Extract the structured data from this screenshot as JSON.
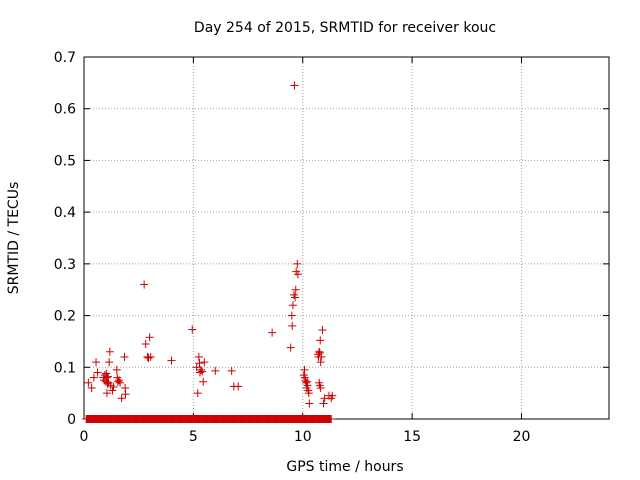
{
  "chart_data": {
    "type": "scatter",
    "title": "Day 254 of 2015, SRMTID for receiver kouc",
    "xlabel": "GPS time / hours",
    "ylabel": "SRMTID / TECUs",
    "xlim": [
      0,
      24
    ],
    "ylim": [
      0,
      0.7
    ],
    "xticks": [
      0,
      5,
      10,
      15,
      20
    ],
    "yticks": [
      0,
      0.1,
      0.2,
      0.3,
      0.4,
      0.5,
      0.6,
      0.7
    ],
    "xtick_labels": [
      "0",
      "5",
      "10",
      "15",
      "20"
    ],
    "ytick_labels": [
      "0",
      "0.1",
      "0.2",
      "0.3",
      "0.4",
      "0.5",
      "0.6",
      "0.7"
    ],
    "grid": true,
    "marker": "+",
    "color": "#cc0000",
    "series": [
      {
        "name": "SRMTID",
        "points": [
          [
            0.2,
            0.07
          ],
          [
            0.35,
            0.06
          ],
          [
            0.45,
            0.08
          ],
          [
            0.55,
            0.11
          ],
          [
            0.62,
            0.09
          ],
          [
            0.88,
            0.08
          ],
          [
            0.92,
            0.075
          ],
          [
            0.95,
            0.085
          ],
          [
            1.0,
            0.072
          ],
          [
            1.02,
            0.088
          ],
          [
            1.05,
            0.08
          ],
          [
            1.08,
            0.068
          ],
          [
            1.1,
            0.082
          ],
          [
            1.12,
            0.07
          ],
          [
            1.05,
            0.05
          ],
          [
            1.15,
            0.11
          ],
          [
            1.18,
            0.13
          ],
          [
            1.22,
            0.065
          ],
          [
            1.3,
            0.055
          ],
          [
            1.35,
            0.062
          ],
          [
            1.5,
            0.095
          ],
          [
            1.52,
            0.08
          ],
          [
            1.55,
            0.072
          ],
          [
            1.6,
            0.075
          ],
          [
            1.65,
            0.07
          ],
          [
            1.72,
            0.04
          ],
          [
            1.85,
            0.12
          ],
          [
            1.88,
            0.06
          ],
          [
            1.9,
            0.048
          ],
          [
            2.75,
            0.26
          ],
          [
            2.82,
            0.145
          ],
          [
            2.9,
            0.12
          ],
          [
            2.95,
            0.118
          ],
          [
            3.0,
            0.158
          ],
          [
            3.05,
            0.12
          ],
          [
            4.0,
            0.113
          ],
          [
            4.95,
            0.173
          ],
          [
            5.15,
            0.1
          ],
          [
            5.2,
            0.05
          ],
          [
            5.25,
            0.12
          ],
          [
            5.28,
            0.108
          ],
          [
            5.3,
            0.09
          ],
          [
            5.35,
            0.095
          ],
          [
            5.4,
            0.092
          ],
          [
            5.45,
            0.072
          ],
          [
            5.5,
            0.11
          ],
          [
            6.0,
            0.093
          ],
          [
            6.75,
            0.093
          ],
          [
            6.85,
            0.063
          ],
          [
            7.05,
            0.063
          ],
          [
            8.6,
            0.167
          ],
          [
            9.45,
            0.138
          ],
          [
            9.5,
            0.2
          ],
          [
            9.52,
            0.18
          ],
          [
            9.55,
            0.22
          ],
          [
            9.6,
            0.24
          ],
          [
            9.62,
            0.645
          ],
          [
            9.65,
            0.235
          ],
          [
            9.68,
            0.25
          ],
          [
            9.7,
            0.285
          ],
          [
            9.75,
            0.3
          ],
          [
            9.78,
            0.28
          ],
          [
            10.05,
            0.085
          ],
          [
            10.08,
            0.095
          ],
          [
            10.1,
            0.08
          ],
          [
            10.12,
            0.075
          ],
          [
            10.15,
            0.07
          ],
          [
            10.18,
            0.06
          ],
          [
            10.2,
            0.072
          ],
          [
            10.22,
            0.065
          ],
          [
            10.25,
            0.055
          ],
          [
            10.28,
            0.05
          ],
          [
            10.3,
            0.03
          ],
          [
            10.7,
            0.125
          ],
          [
            10.72,
            0.12
          ],
          [
            10.75,
            0.13
          ],
          [
            10.78,
            0.128
          ],
          [
            10.8,
            0.152
          ],
          [
            10.82,
            0.11
          ],
          [
            10.85,
            0.12
          ],
          [
            10.75,
            0.07
          ],
          [
            10.78,
            0.065
          ],
          [
            10.82,
            0.06
          ],
          [
            10.9,
            0.172
          ],
          [
            10.95,
            0.03
          ],
          [
            11.0,
            0.04
          ],
          [
            11.2,
            0.045
          ],
          [
            11.3,
            0.04
          ],
          [
            11.35,
            0.045
          ]
        ],
        "zero_run_hours": [
          0.1,
          11.3
        ]
      }
    ]
  }
}
